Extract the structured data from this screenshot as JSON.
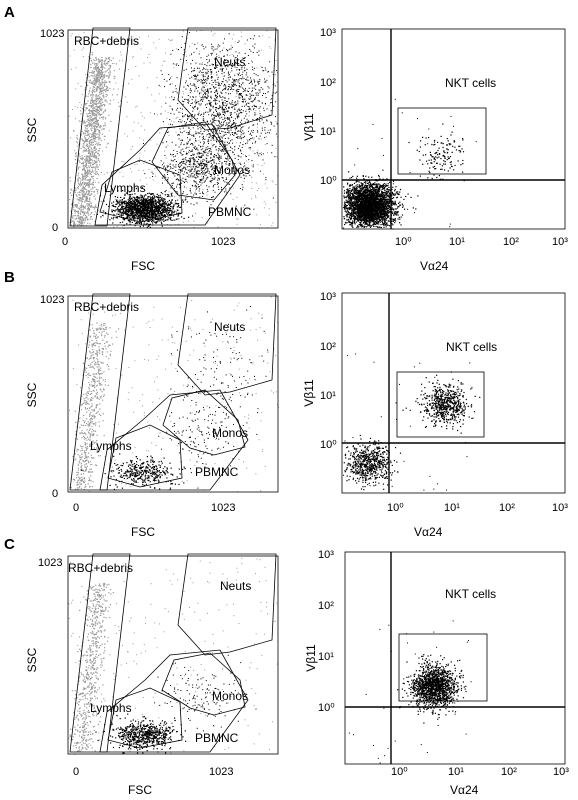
{
  "chart_data": [
    {
      "type": "scatter",
      "panel": "A",
      "kind": "scatter-gates",
      "xlabel": "FSC",
      "ylabel": "SSC",
      "xlim": [
        0,
        1023
      ],
      "ylim": [
        0,
        1023
      ],
      "xticks": [
        "0",
        "1023"
      ],
      "yticks": [
        "0",
        "1023"
      ],
      "gates": [
        "RBC+debris",
        "Neuts",
        "Monos",
        "Lymphs",
        "PBMNC"
      ],
      "populations": {
        "lymphs": "dense",
        "monos": "medium",
        "neuts": "dense",
        "rbc_debris": "dense"
      }
    },
    {
      "type": "scatter",
      "panel": "A",
      "kind": "scatter-log",
      "xlabel": "Vα24",
      "ylabel": "Vβ11",
      "scale": "log",
      "xlim": [
        0.1,
        1000
      ],
      "ylim": [
        0.1,
        1000
      ],
      "xticks": [
        "10⁰",
        "10¹",
        "10²",
        "10³"
      ],
      "yticks": [
        "10⁰",
        "10¹",
        "10²",
        "10³"
      ],
      "gate_label": "NKT cells",
      "gate_x": [
        1,
        40
      ],
      "gate_y": [
        1.2,
        25
      ],
      "quadrant_x": 0.8,
      "quadrant_y": 0.9,
      "clusters": [
        {
          "x": 0.3,
          "y": 0.3,
          "density": "very dense"
        },
        {
          "x": 6,
          "y": 3,
          "density": "sparse"
        }
      ]
    },
    {
      "type": "scatter",
      "panel": "B",
      "kind": "scatter-gates",
      "xlabel": "FSC",
      "ylabel": "SSC",
      "xlim": [
        0,
        1023
      ],
      "ylim": [
        0,
        1023
      ],
      "xticks": [
        "0",
        "1023"
      ],
      "yticks": [
        "0",
        "1023"
      ],
      "gates": [
        "RBC+debris",
        "Neuts",
        "Monos",
        "Lymphs",
        "PBMNC"
      ],
      "populations": {
        "lymphs": "small cluster",
        "monos": "sparse",
        "neuts": "sparse",
        "rbc_debris": "medium"
      }
    },
    {
      "type": "scatter",
      "panel": "B",
      "kind": "scatter-log",
      "xlabel": "Vα24",
      "ylabel": "Vβ11",
      "scale": "log",
      "xlim": [
        0.1,
        1000
      ],
      "ylim": [
        0.1,
        1000
      ],
      "xticks": [
        "10⁰",
        "10¹",
        "10²",
        "10³"
      ],
      "yticks": [
        "10⁰",
        "10¹",
        "10²",
        "10³"
      ],
      "gate_label": "NKT cells",
      "gate_x": [
        1,
        40
      ],
      "gate_y": [
        1.1,
        25
      ],
      "quadrant_x": 0.9,
      "quadrant_y": 1.0,
      "clusters": [
        {
          "x": 0.3,
          "y": 0.4,
          "density": "medium"
        },
        {
          "x": 7,
          "y": 6,
          "density": "medium"
        }
      ]
    },
    {
      "type": "scatter",
      "panel": "C",
      "kind": "scatter-gates",
      "xlabel": "FSC",
      "ylabel": "SSC",
      "xlim": [
        0,
        1023
      ],
      "ylim": [
        0,
        1023
      ],
      "xticks": [
        "0",
        "1023"
      ],
      "yticks": [
        "1023"
      ],
      "gates": [
        "RBC+debris",
        "Neuts",
        "Monos",
        "Lymphs",
        "PBMNC"
      ],
      "populations": {
        "lymphs": "medium",
        "monos": "sparse",
        "neuts": "none",
        "rbc_debris": "medium"
      }
    },
    {
      "type": "scatter",
      "panel": "C",
      "kind": "scatter-log",
      "xlabel": "Vα24",
      "ylabel": "Vβ11",
      "scale": "log",
      "xlim": [
        0.1,
        1000
      ],
      "ylim": [
        0.1,
        1000
      ],
      "xticks": [
        "10⁰",
        "10¹",
        "10²",
        "10³"
      ],
      "yticks": [
        "10⁰",
        "10¹",
        "10²",
        "10³"
      ],
      "gate_label": "NKT cells",
      "gate_x": [
        1,
        40
      ],
      "gate_y": [
        1.3,
        25
      ],
      "quadrant_x": 0.8,
      "quadrant_y": 0.9,
      "clusters": [
        {
          "x": 4,
          "y": 3,
          "density": "dense"
        }
      ]
    }
  ],
  "colors": {
    "dots": "#000000",
    "light_dots": "#9a9a9a",
    "frame": "#000000"
  }
}
